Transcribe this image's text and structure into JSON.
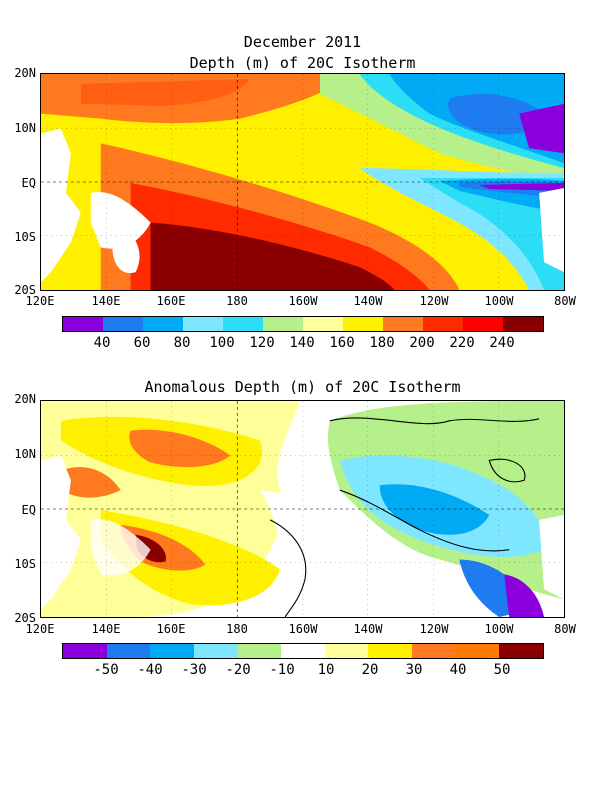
{
  "figure_title": "December 2011",
  "panel1": {
    "title": "Depth (m) of 20C Isotherm",
    "colorbar": {
      "labels": [
        "40",
        "60",
        "80",
        "100",
        "120",
        "140",
        "160",
        "180",
        "200",
        "220",
        "240"
      ],
      "colors": [
        "#8B00DD",
        "#1E7BF0",
        "#00AAF5",
        "#7FE6FF",
        "#2BDDF5",
        "#B6F08A",
        "#FFFF9A",
        "#FFF000",
        "#FF7A1E",
        "#FF2A00",
        "#8A0000"
      ]
    }
  },
  "panel2": {
    "title": "Anomalous Depth (m) of 20C Isotherm",
    "colorbar": {
      "labels": [
        "-50",
        "-40",
        "-30",
        "-20",
        "-10",
        "10",
        "20",
        "30",
        "40",
        "50"
      ],
      "colors": [
        "#8B00DD",
        "#1E7BF0",
        "#00AAF5",
        "#7FE6FF",
        "#B6F08A",
        "#FFFFFF",
        "#FFFF9A",
        "#FFF000",
        "#FF7A1E",
        "#FF7A00",
        "#8A0000"
      ]
    }
  },
  "axes": {
    "lat_labels": [
      "20N",
      "10N",
      "EQ",
      "10S",
      "20S"
    ],
    "lon_labels": [
      "120E",
      "140E",
      "160E",
      "180",
      "160W",
      "140W",
      "120W",
      "100W",
      "80W"
    ]
  }
}
